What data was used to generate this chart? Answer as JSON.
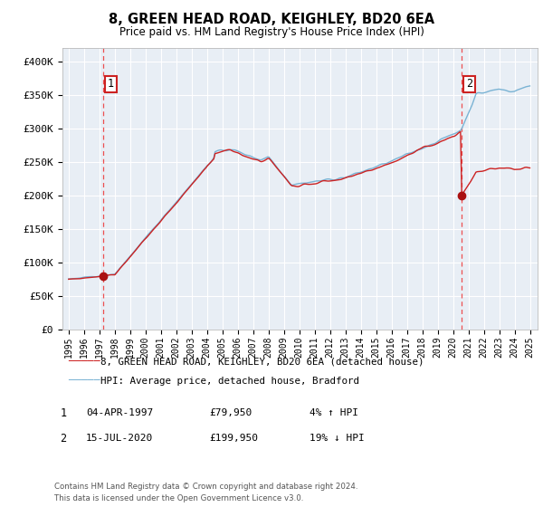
{
  "title": "8, GREEN HEAD ROAD, KEIGHLEY, BD20 6EA",
  "subtitle": "Price paid vs. HM Land Registry's House Price Index (HPI)",
  "legend_line1": "8, GREEN HEAD ROAD, KEIGHLEY, BD20 6EA (detached house)",
  "legend_line2": "HPI: Average price, detached house, Bradford",
  "table_rows": [
    {
      "num": "1",
      "date": "04-APR-1997",
      "price": "£79,950",
      "hpi": "4% ↑ HPI"
    },
    {
      "num": "2",
      "date": "15-JUL-2020",
      "price": "£199,950",
      "hpi": "19% ↓ HPI"
    }
  ],
  "footnote": "Contains HM Land Registry data © Crown copyright and database right 2024.\nThis data is licensed under the Open Government Licence v3.0.",
  "ylim": [
    0,
    420000
  ],
  "yticks": [
    0,
    50000,
    100000,
    150000,
    200000,
    250000,
    300000,
    350000,
    400000
  ],
  "ytick_labels": [
    "£0",
    "£50K",
    "£100K",
    "£150K",
    "£200K",
    "£250K",
    "£300K",
    "£350K",
    "£400K"
  ],
  "hpi_color": "#7ab3d4",
  "price_color": "#cc2222",
  "marker_color": "#aa1111",
  "vline_color": "#ee3333",
  "point1_year": 1997.25,
  "point1_price": 79950,
  "point2_year": 2020.54,
  "point2_price": 199950,
  "plot_background": "#e8eef5",
  "grid_color": "#ffffff"
}
